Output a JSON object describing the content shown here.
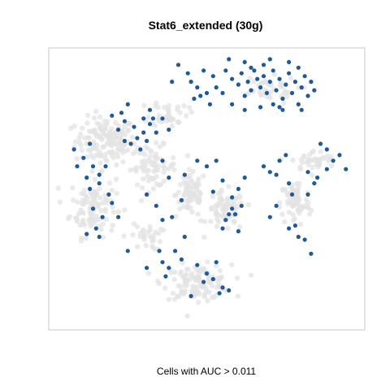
{
  "chart_data": {
    "type": "scatter",
    "title": "Stat6_extended (30g)",
    "xlabel": "Cells with AUC > 0.011",
    "ylabel": "",
    "xlim": [
      0,
      100
    ],
    "ylim": [
      0,
      100
    ],
    "grid": false,
    "legend": "none",
    "colors": {
      "background": "#e3e3e3",
      "highlight": "#1f5a96",
      "frame": "#c8c8c8"
    },
    "series": [
      {
        "role": "all cells",
        "color": "#e3e3e3",
        "clusters": [
          {
            "center": [
              18,
              67
            ],
            "spread": [
              8,
              7
            ],
            "n": 140
          },
          {
            "center": [
              14,
              44
            ],
            "spread": [
              6,
              9
            ],
            "n": 110
          },
          {
            "center": [
              33,
              58
            ],
            "spread": [
              6,
              6
            ],
            "n": 70
          },
          {
            "center": [
              45,
              48
            ],
            "spread": [
              4,
              7
            ],
            "n": 70
          },
          {
            "center": [
              56,
              42
            ],
            "spread": [
              5,
              6
            ],
            "n": 70
          },
          {
            "center": [
              47,
              17
            ],
            "spread": [
              9,
              5
            ],
            "n": 120
          },
          {
            "center": [
              78,
              45
            ],
            "spread": [
              4,
              7
            ],
            "n": 70
          },
          {
            "center": [
              84,
              60
            ],
            "spread": [
              6,
              3
            ],
            "n": 40
          },
          {
            "center": [
              38,
              77
            ],
            "spread": [
              5,
              4
            ],
            "n": 40
          },
          {
            "center": [
              68,
              85
            ],
            "spread": [
              9,
              4
            ],
            "n": 40
          },
          {
            "center": [
              31,
              33
            ],
            "spread": [
              4,
              4
            ],
            "n": 30
          }
        ]
      },
      {
        "role": "cells with AUC > 0.011",
        "color": "#1f5a96",
        "points": [
          [
            44,
            91
          ],
          [
            45,
            88
          ],
          [
            47,
            86
          ],
          [
            48,
            83
          ],
          [
            46,
            82
          ],
          [
            50,
            84
          ],
          [
            52,
            90
          ],
          [
            49,
            92
          ],
          [
            53,
            86
          ],
          [
            51,
            80
          ],
          [
            56,
            92
          ],
          [
            58,
            89
          ],
          [
            60,
            87
          ],
          [
            61,
            91
          ],
          [
            63,
            88
          ],
          [
            64,
            85
          ],
          [
            62,
            83
          ],
          [
            65,
            92
          ],
          [
            66,
            89
          ],
          [
            67,
            86
          ],
          [
            68,
            90
          ],
          [
            69,
            84
          ],
          [
            70,
            88
          ],
          [
            71,
            92
          ],
          [
            72,
            85
          ],
          [
            73,
            89
          ],
          [
            74,
            82
          ],
          [
            75,
            87
          ],
          [
            76,
            91
          ],
          [
            77,
            84
          ],
          [
            78,
            88
          ],
          [
            79,
            93
          ],
          [
            80,
            86
          ],
          [
            81,
            90
          ],
          [
            82,
            83
          ],
          [
            83,
            88
          ],
          [
            84,
            85
          ],
          [
            71,
            80
          ],
          [
            67,
            79
          ],
          [
            74,
            78
          ],
          [
            79,
            80
          ],
          [
            58,
            80
          ],
          [
            62,
            78
          ],
          [
            55,
            84
          ],
          [
            64,
            93
          ],
          [
            70,
            96
          ],
          [
            57,
            96
          ],
          [
            62,
            95
          ],
          [
            76,
            95
          ],
          [
            68,
            94
          ],
          [
            73,
            79
          ],
          [
            80,
            78
          ],
          [
            41,
            94
          ],
          [
            39,
            88
          ],
          [
            23,
            77
          ],
          [
            24,
            74
          ],
          [
            22,
            71
          ],
          [
            30,
            75
          ],
          [
            30,
            70
          ],
          [
            26,
            66
          ],
          [
            32,
            73
          ],
          [
            28,
            68
          ],
          [
            31,
            67
          ],
          [
            29,
            64
          ],
          [
            25,
            80
          ],
          [
            33,
            75
          ],
          [
            20,
            76
          ],
          [
            32,
            78
          ],
          [
            34,
            70
          ],
          [
            36,
            75
          ],
          [
            38,
            71
          ],
          [
            27,
            72
          ],
          [
            24,
            67
          ],
          [
            8,
            64
          ],
          [
            11,
            61
          ],
          [
            14,
            58
          ],
          [
            16,
            55
          ],
          [
            18,
            58
          ],
          [
            13,
            66
          ],
          [
            9,
            58
          ],
          [
            12,
            54
          ],
          [
            16,
            52
          ],
          [
            14,
            43
          ],
          [
            17,
            40
          ],
          [
            22,
            40
          ],
          [
            16,
            33
          ],
          [
            12,
            34
          ],
          [
            20,
            45
          ],
          [
            19,
            48
          ],
          [
            13,
            50
          ],
          [
            15,
            36
          ],
          [
            36,
            60
          ],
          [
            38,
            54
          ],
          [
            31,
            48
          ],
          [
            34,
            44
          ],
          [
            39,
            40
          ],
          [
            42,
            46
          ],
          [
            36,
            39
          ],
          [
            43,
            55
          ],
          [
            47,
            60
          ],
          [
            50,
            58
          ],
          [
            53,
            60
          ],
          [
            55,
            53
          ],
          [
            52,
            49
          ],
          [
            58,
            43
          ],
          [
            57,
            41
          ],
          [
            56,
            39
          ],
          [
            55,
            36
          ],
          [
            60,
            35
          ],
          [
            58,
            47
          ],
          [
            60,
            50
          ],
          [
            62,
            54
          ],
          [
            61,
            44
          ],
          [
            59,
            41
          ],
          [
            68,
            58
          ],
          [
            70,
            56
          ],
          [
            73,
            60
          ],
          [
            75,
            62
          ],
          [
            72,
            55
          ],
          [
            86,
            66
          ],
          [
            88,
            64
          ],
          [
            90,
            60
          ],
          [
            92,
            62
          ],
          [
            94,
            57
          ],
          [
            88,
            57
          ],
          [
            82,
            56
          ],
          [
            84,
            52
          ],
          [
            85,
            54
          ],
          [
            82,
            48
          ],
          [
            77,
            48
          ],
          [
            76,
            52
          ],
          [
            78,
            37
          ],
          [
            76,
            36
          ],
          [
            79,
            33
          ],
          [
            81,
            32
          ],
          [
            83,
            27
          ],
          [
            70,
            40
          ],
          [
            72,
            44
          ],
          [
            43,
            33
          ],
          [
            40,
            28
          ],
          [
            38,
            22
          ],
          [
            37,
            19
          ],
          [
            31,
            22
          ],
          [
            25,
            28
          ],
          [
            35,
            28
          ],
          [
            36,
            24
          ],
          [
            47,
            23
          ],
          [
            50,
            20
          ],
          [
            52,
            18
          ],
          [
            55,
            15
          ],
          [
            57,
            14
          ],
          [
            54,
            13
          ],
          [
            49,
            17
          ],
          [
            53,
            24
          ],
          [
            42,
            25
          ],
          [
            45,
            12
          ]
        ]
      }
    ]
  }
}
